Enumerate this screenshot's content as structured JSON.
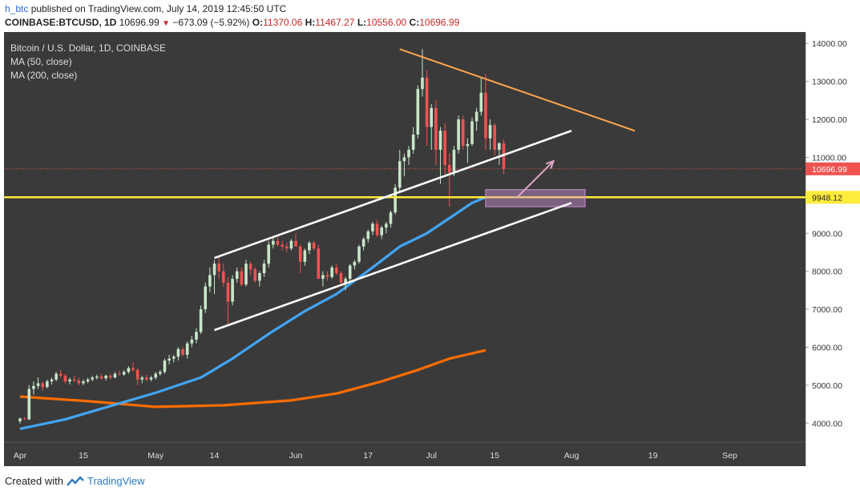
{
  "header": {
    "user": "h_btc",
    "published": " published on TradingView.com, July 14, 2019 12:45:50 UTC",
    "symbol": "COINBASE:BTCUSD, 1D",
    "price": "10696.99",
    "change": "−673.09 (−5.92%)",
    "o_label": "O:",
    "o_val": "11370.06",
    "h_label": "H:",
    "h_val": "11467.27",
    "l_label": "L:",
    "l_val": "10556.00",
    "c_label": "C:",
    "c_val": "10696.99"
  },
  "footer": {
    "created": "Created with",
    "brand": "TradingView"
  },
  "colors": {
    "bg": "#3a3a3a",
    "up": "#c8e6c9",
    "down": "#ef5350",
    "ma50": "#42a5f5",
    "ma200": "#ff6d00",
    "support": "#ffeb3b",
    "resistance": "#ffa54f",
    "channel": "#ffffff"
  },
  "chart_data": {
    "type": "candlestick",
    "title": "Bitcoin / U.S. Dollar, 1D, COINBASE",
    "legend": [
      "MA (50, close)",
      "MA (200, close)"
    ],
    "y_range": [
      3500,
      14300
    ],
    "y_ticks": [
      "14000.00",
      "13000.00",
      "12000.00",
      "11000.00",
      "9000.00",
      "8000.00",
      "7000.00",
      "6000.00",
      "5000.00",
      "4000.00"
    ],
    "y_tick_values": [
      14000,
      13000,
      12000,
      11000,
      9000,
      8000,
      7000,
      6000,
      5000,
      4000
    ],
    "x_ticks": [
      "Apr",
      "15",
      "May",
      "14",
      "Jun",
      "17",
      "Jul",
      "15",
      "Aug",
      "19",
      "Sep"
    ],
    "x_tick_days": [
      0,
      14,
      30,
      43,
      61,
      77,
      91,
      105,
      122,
      140,
      157
    ],
    "last_price_label": "10696.99",
    "support_label": "9948.12",
    "support_value": 9948.12,
    "candles": [
      [
        4050,
        4150,
        3990,
        4120
      ],
      [
        4120,
        4160,
        4080,
        4100
      ],
      [
        4100,
        5000,
        4080,
        4900
      ],
      [
        4900,
        5100,
        4750,
        4980
      ],
      [
        4980,
        5200,
        4900,
        5050
      ],
      [
        5050,
        5100,
        4850,
        4950
      ],
      [
        4950,
        5150,
        4920,
        5100
      ],
      [
        5100,
        5200,
        5020,
        5150
      ],
      [
        5150,
        5350,
        5100,
        5300
      ],
      [
        5300,
        5400,
        5200,
        5250
      ],
      [
        5250,
        5300,
        5050,
        5100
      ],
      [
        5100,
        5200,
        5020,
        5150
      ],
      [
        5150,
        5250,
        5080,
        5120
      ],
      [
        5120,
        5200,
        5000,
        5050
      ],
      [
        5050,
        5150,
        5000,
        5100
      ],
      [
        5100,
        5200,
        5050,
        5150
      ],
      [
        5150,
        5250,
        5100,
        5200
      ],
      [
        5200,
        5280,
        5150,
        5230
      ],
      [
        5230,
        5300,
        5150,
        5180
      ],
      [
        5180,
        5280,
        5120,
        5250
      ],
      [
        5250,
        5300,
        5150,
        5200
      ],
      [
        5200,
        5350,
        5180,
        5300
      ],
      [
        5300,
        5380,
        5250,
        5280
      ],
      [
        5280,
        5400,
        5250,
        5350
      ],
      [
        5350,
        5500,
        5300,
        5450
      ],
      [
        5450,
        5600,
        5350,
        5400
      ],
      [
        5400,
        5450,
        5000,
        5150
      ],
      [
        5150,
        5250,
        5050,
        5200
      ],
      [
        5200,
        5280,
        5100,
        5150
      ],
      [
        5150,
        5250,
        5100,
        5200
      ],
      [
        5200,
        5350,
        5150,
        5300
      ],
      [
        5300,
        5400,
        5250,
        5350
      ],
      [
        5350,
        5700,
        5300,
        5650
      ],
      [
        5650,
        5800,
        5550,
        5700
      ],
      [
        5700,
        5800,
        5600,
        5750
      ],
      [
        5750,
        6000,
        5650,
        5950
      ],
      [
        5950,
        6000,
        5750,
        5800
      ],
      [
        5800,
        6150,
        5700,
        6100
      ],
      [
        6100,
        6300,
        6000,
        6200
      ],
      [
        6200,
        6500,
        6100,
        6400
      ],
      [
        6400,
        7100,
        6350,
        7000
      ],
      [
        7000,
        7700,
        6900,
        7600
      ],
      [
        7600,
        8100,
        7450,
        7900
      ],
      [
        7900,
        8300,
        7400,
        8200
      ],
      [
        8200,
        8400,
        7800,
        8000
      ],
      [
        8000,
        8200,
        7600,
        7700
      ],
      [
        7700,
        7850,
        6600,
        7200
      ],
      [
        7200,
        7900,
        7100,
        7800
      ],
      [
        7800,
        8100,
        7700,
        8000
      ],
      [
        8000,
        8100,
        7600,
        7650
      ],
      [
        7650,
        8300,
        7600,
        8200
      ],
      [
        8200,
        8250,
        7900,
        8050
      ],
      [
        8050,
        8100,
        7700,
        7750
      ],
      [
        7750,
        8000,
        7600,
        7950
      ],
      [
        7950,
        8300,
        7850,
        8200
      ],
      [
        8200,
        8800,
        8100,
        8700
      ],
      [
        8700,
        8900,
        8600,
        8800
      ],
      [
        8800,
        8900,
        8650,
        8700
      ],
      [
        8700,
        8800,
        8550,
        8650
      ],
      [
        8650,
        8750,
        8500,
        8600
      ],
      [
        8600,
        8850,
        8550,
        8800
      ],
      [
        8800,
        9000,
        8700,
        8650
      ],
      [
        8650,
        8700,
        7950,
        8250
      ],
      [
        8250,
        8600,
        8150,
        8550
      ],
      [
        8550,
        8800,
        8450,
        8750
      ],
      [
        8750,
        8800,
        8550,
        8600
      ],
      [
        8600,
        8700,
        7900,
        7800
      ],
      [
        7800,
        8000,
        7600,
        7900
      ],
      [
        7900,
        8000,
        7750,
        7850
      ],
      [
        7850,
        8150,
        7800,
        8100
      ],
      [
        8100,
        8200,
        7900,
        7950
      ],
      [
        7950,
        8000,
        7600,
        7700
      ],
      [
        7700,
        7850,
        7500,
        7800
      ],
      [
        7800,
        8200,
        7750,
        8150
      ],
      [
        8150,
        8300,
        8050,
        8250
      ],
      [
        8250,
        8700,
        8200,
        8650
      ],
      [
        8650,
        8900,
        8550,
        8850
      ],
      [
        8850,
        9100,
        8750,
        9050
      ],
      [
        9050,
        9300,
        8950,
        9250
      ],
      [
        9250,
        9350,
        8900,
        8950
      ],
      [
        8950,
        9200,
        8850,
        9150
      ],
      [
        9150,
        9300,
        9000,
        9250
      ],
      [
        9250,
        9600,
        9150,
        9550
      ],
      [
        9550,
        10300,
        9500,
        10200
      ],
      [
        10200,
        11200,
        10100,
        10900
      ],
      [
        10900,
        11100,
        10500,
        11000
      ],
      [
        11000,
        11300,
        10800,
        11200
      ],
      [
        11200,
        11800,
        11100,
        11600
      ],
      [
        11600,
        12900,
        11500,
        12800
      ],
      [
        12800,
        13850,
        12600,
        13100
      ],
      [
        13100,
        13300,
        11300,
        11800
      ],
      [
        11800,
        12400,
        11200,
        12300
      ],
      [
        12300,
        12500,
        10800,
        11200
      ],
      [
        11200,
        11800,
        10300,
        11700
      ],
      [
        11700,
        11900,
        10500,
        10800
      ],
      [
        10800,
        11100,
        9700,
        10600
      ],
      [
        10600,
        11300,
        10500,
        11200
      ],
      [
        11200,
        12100,
        11100,
        12000
      ],
      [
        12000,
        12100,
        11200,
        11300
      ],
      [
        11300,
        11500,
        10850,
        11350
      ],
      [
        11350,
        12050,
        11300,
        11950
      ],
      [
        11950,
        12300,
        11700,
        12200
      ],
      [
        12200,
        13100,
        12100,
        12700
      ],
      [
        12700,
        13200,
        11200,
        11500
      ],
      [
        11500,
        12000,
        11200,
        11850
      ],
      [
        11850,
        11900,
        11050,
        11200
      ],
      [
        11200,
        11400,
        10800,
        11370
      ],
      [
        11370,
        11467,
        10556,
        10697
      ]
    ],
    "ma50_points": [
      [
        0,
        3850
      ],
      [
        10,
        4100
      ],
      [
        20,
        4450
      ],
      [
        30,
        4800
      ],
      [
        40,
        5200
      ],
      [
        47,
        5700
      ],
      [
        55,
        6350
      ],
      [
        63,
        6950
      ],
      [
        70,
        7400
      ],
      [
        78,
        8100
      ],
      [
        84,
        8650
      ],
      [
        90,
        9000
      ],
      [
        95,
        9400
      ],
      [
        100,
        9800
      ],
      [
        103,
        9950
      ]
    ],
    "ma200_points": [
      [
        0,
        4700
      ],
      [
        15,
        4580
      ],
      [
        30,
        4430
      ],
      [
        45,
        4470
      ],
      [
        60,
        4600
      ],
      [
        70,
        4780
      ],
      [
        80,
        5100
      ],
      [
        88,
        5400
      ],
      [
        95,
        5700
      ],
      [
        103,
        5920
      ]
    ],
    "trend_lines": [
      {
        "name": "channel-upper",
        "p1": [
          43,
          8350
        ],
        "p2": [
          122,
          11700
        ]
      },
      {
        "name": "channel-lower",
        "p1": [
          43,
          6450
        ],
        "p2": [
          122,
          9800
        ]
      },
      {
        "name": "resistance",
        "p1": [
          84,
          13850
        ],
        "p2": [
          136,
          11700
        ]
      },
      {
        "name": "target-arrow",
        "p1": [
          110,
          9950
        ],
        "p2": [
          118,
          10900
        ]
      }
    ],
    "highlight_box": {
      "x1": 103,
      "x2": 125,
      "y1": 9700,
      "y2": 10150
    }
  }
}
